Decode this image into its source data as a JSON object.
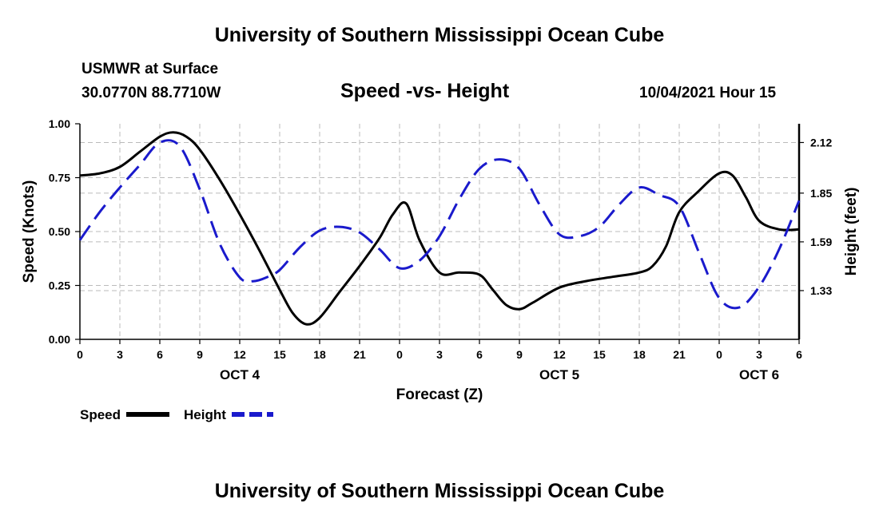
{
  "header": {
    "title": "University of Southern Mississippi Ocean Cube",
    "station": "USMWR at Surface",
    "coords": "30.0770N  88.7710W",
    "subtitle": "Speed -vs- Height",
    "datetime": "10/04/2021 Hour 15"
  },
  "footer": {
    "title": "University of Southern Mississippi Ocean Cube"
  },
  "legend": {
    "speed_label": "Speed",
    "height_label": "Height"
  },
  "colors": {
    "speed": "#000000",
    "height": "#1a1acc",
    "grid": "#bbbbbb"
  },
  "chart_data": {
    "type": "line",
    "title": "Speed -vs- Height",
    "xlabel": "Forecast (Z)",
    "ylabel_left": "Speed (Knots)",
    "ylabel_right": "Height (feet)",
    "x_range": [
      0,
      54
    ],
    "x_tick_values": [
      0,
      3,
      6,
      9,
      12,
      15,
      18,
      21,
      24,
      27,
      30,
      33,
      36,
      39,
      42,
      45,
      48,
      51,
      54
    ],
    "x_tick_labels": [
      "0",
      "3",
      "6",
      "9",
      "12",
      "15",
      "18",
      "21",
      "0",
      "3",
      "6",
      "9",
      "12",
      "15",
      "18",
      "21",
      "0",
      "3",
      "6"
    ],
    "day_labels": [
      {
        "label": "OCT 4",
        "x": 12
      },
      {
        "label": "OCT 5",
        "x": 36
      },
      {
        "label": "OCT 6",
        "x": 51
      }
    ],
    "ylim_left": [
      0,
      1
    ],
    "y_left_ticks": [
      {
        "value": 0,
        "label": "0.00"
      },
      {
        "value": 0.25,
        "label": "0.25"
      },
      {
        "value": 0.5,
        "label": "0.50"
      },
      {
        "value": 0.75,
        "label": "0.75"
      },
      {
        "value": 1,
        "label": "1.00"
      }
    ],
    "ylim_right": [
      1.07,
      2.22
    ],
    "y_right_ticks": [
      {
        "value": 1.33,
        "label": "1.33"
      },
      {
        "value": 1.59,
        "label": "1.59"
      },
      {
        "value": 1.85,
        "label": "1.85"
      },
      {
        "value": 2.12,
        "label": "2.12"
      }
    ],
    "grid": true,
    "series": [
      {
        "name": "Speed",
        "axis": "left",
        "style": "solid",
        "x": [
          0,
          1.5,
          3,
          4.5,
          6,
          7,
          8,
          9,
          10.5,
          12,
          13.5,
          15,
          16,
          17,
          18,
          19.5,
          21,
          22.5,
          23.5,
          24.5,
          25.5,
          27,
          28.5,
          30,
          31,
          32,
          33,
          34,
          36,
          38,
          40,
          42,
          43,
          44,
          45,
          46.5,
          48,
          49,
          50,
          51,
          52.5,
          54
        ],
        "values": [
          0.76,
          0.77,
          0.8,
          0.87,
          0.94,
          0.96,
          0.94,
          0.88,
          0.74,
          0.58,
          0.41,
          0.23,
          0.12,
          0.07,
          0.1,
          0.22,
          0.34,
          0.47,
          0.58,
          0.63,
          0.46,
          0.31,
          0.31,
          0.3,
          0.23,
          0.16,
          0.14,
          0.17,
          0.24,
          0.27,
          0.29,
          0.31,
          0.34,
          0.43,
          0.59,
          0.69,
          0.77,
          0.76,
          0.66,
          0.55,
          0.51,
          0.51
        ]
      },
      {
        "name": "Height",
        "axis": "right",
        "style": "dashed",
        "x": [
          0,
          1.5,
          3,
          4.5,
          6,
          7.5,
          9,
          10.5,
          12,
          13,
          14,
          15,
          16.5,
          18,
          19.5,
          21,
          22.5,
          24,
          25.5,
          27,
          28.5,
          30,
          31.5,
          33,
          34.5,
          36,
          37.5,
          39,
          40.5,
          42,
          43.5,
          45,
          46.5,
          48,
          49.5,
          51,
          52.5,
          54
        ],
        "values": [
          1.6,
          1.75,
          1.88,
          2.0,
          2.12,
          2.1,
          1.87,
          1.58,
          1.4,
          1.38,
          1.4,
          1.44,
          1.56,
          1.65,
          1.67,
          1.64,
          1.55,
          1.45,
          1.49,
          1.62,
          1.82,
          1.98,
          2.03,
          1.98,
          1.79,
          1.63,
          1.62,
          1.67,
          1.79,
          1.88,
          1.84,
          1.78,
          1.53,
          1.29,
          1.24,
          1.35,
          1.55,
          1.81
        ]
      }
    ]
  }
}
